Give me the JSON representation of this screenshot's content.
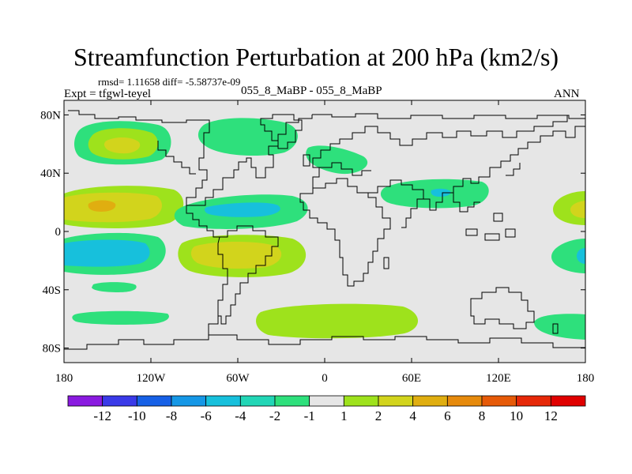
{
  "title": "Streamfunction Perturbation at 200 hPa (km2/s)",
  "stats": "rmsd= 1.11658 diff= -5.58737e-09",
  "experiment": "Expt = tfgwl-teyel",
  "case_label": "055_8_MaBP - 055_8_MaBP",
  "period": "ANN",
  "chart_data": {
    "type": "contour-map",
    "title": "Streamfunction Perturbation at 200 hPa (km2/s)",
    "units": "km2/s",
    "x_ticks": [
      "180",
      "120W",
      "60W",
      "0",
      "60E",
      "120E",
      "180"
    ],
    "x_tick_values": [
      -180,
      -120,
      -60,
      0,
      60,
      120,
      180
    ],
    "y_ticks": [
      "80N",
      "40N",
      "0",
      "40S",
      "80S"
    ],
    "y_tick_values": [
      80,
      40,
      0,
      -40,
      -80
    ],
    "xlim": [
      -180,
      180
    ],
    "ylim": [
      -90,
      90
    ],
    "colorbar": {
      "labels": [
        "-12",
        "-10",
        "-8",
        "-6",
        "-4",
        "-2",
        "-1",
        "1",
        "2",
        "4",
        "6",
        "8",
        "10",
        "12"
      ],
      "colors": [
        "#8a1ae0",
        "#3a3ae8",
        "#1660e6",
        "#1597e6",
        "#17c0dc",
        "#22d6b6",
        "#2ee07c",
        "#e6e6e6",
        "#9ee21c",
        "#d2d41c",
        "#e0ae10",
        "#e68a0c",
        "#e65a08",
        "#e62808",
        "#e00000"
      ]
    }
  }
}
